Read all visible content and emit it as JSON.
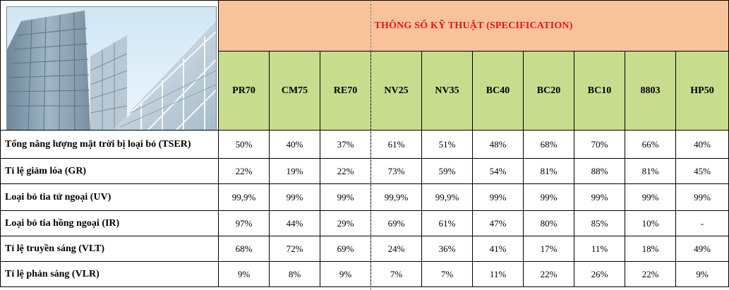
{
  "header": {
    "title": "THÔNG SỐ KỸ THUẬT (SPECIFICATION)"
  },
  "image": {
    "icon": "building-photo"
  },
  "colors": {
    "header_bg": "#f8c39b",
    "header_text": "#e8121b",
    "model_bg": "#c8dc8e"
  },
  "models": [
    "PR70",
    "CM75",
    "RE70",
    "NV25",
    "NV35",
    "BC40",
    "BC20",
    "BC10",
    "8803",
    "HP50"
  ],
  "rows": [
    {
      "label": "Tổng năng lượng mặt trời bị loại bỏ (TSER)",
      "values": [
        "50%",
        "40%",
        "37%",
        "61%",
        "51%",
        "48%",
        "68%",
        "70%",
        "66%",
        "40%"
      ]
    },
    {
      "label": "Tỉ lệ giảm lóa (GR)",
      "values": [
        "22%",
        "19%",
        "22%",
        "73%",
        "59%",
        "54%",
        "81%",
        "88%",
        "81%",
        "45%"
      ]
    },
    {
      "label": "Loại bỏ tia tử ngoại (UV)",
      "values": [
        "99,9%",
        "99%",
        "99%",
        "99,9%",
        "99,9%",
        "99%",
        "99%",
        "99%",
        "99%",
        "99%"
      ]
    },
    {
      "label": "Loại bỏ tia hồng ngoại (IR)",
      "values": [
        "97%",
        "44%",
        "29%",
        "69%",
        "61%",
        "47%",
        "80%",
        "85%",
        "10%",
        "-"
      ]
    },
    {
      "label": "Tỉ lệ truyền sáng (VLT)",
      "values": [
        "68%",
        "72%",
        "69%",
        "24%",
        "36%",
        "41%",
        "17%",
        "11%",
        "18%",
        "49%"
      ]
    },
    {
      "label": "Tỉ lệ phản sáng (VLR)",
      "values": [
        "9%",
        "8%",
        "9%",
        "7%",
        "7%",
        "11%",
        "22%",
        "26%",
        "22%",
        "9%"
      ]
    }
  ]
}
